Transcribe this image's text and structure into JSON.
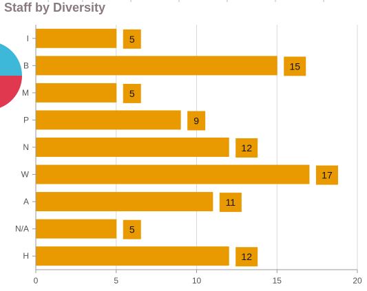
{
  "header": {
    "title": "Staff by Diversity"
  },
  "colors": {
    "bar": "#E89A00",
    "grid": "#d9d9d9",
    "axis": "#999999",
    "pie_blue": "#3DB8D9",
    "pie_red": "#E0384E"
  },
  "chart_data": {
    "type": "bar",
    "orientation": "horizontal",
    "categories": [
      "I",
      "B",
      "M",
      "P",
      "N",
      "W",
      "A",
      "N/A",
      "H"
    ],
    "values": [
      5,
      15,
      5,
      9,
      12,
      17,
      11,
      5,
      12
    ],
    "xlim": [
      0,
      20
    ],
    "xticks": [
      0,
      5,
      10,
      15,
      20
    ],
    "grid": true,
    "data_labels": true,
    "title": "Staff by Diversity"
  }
}
